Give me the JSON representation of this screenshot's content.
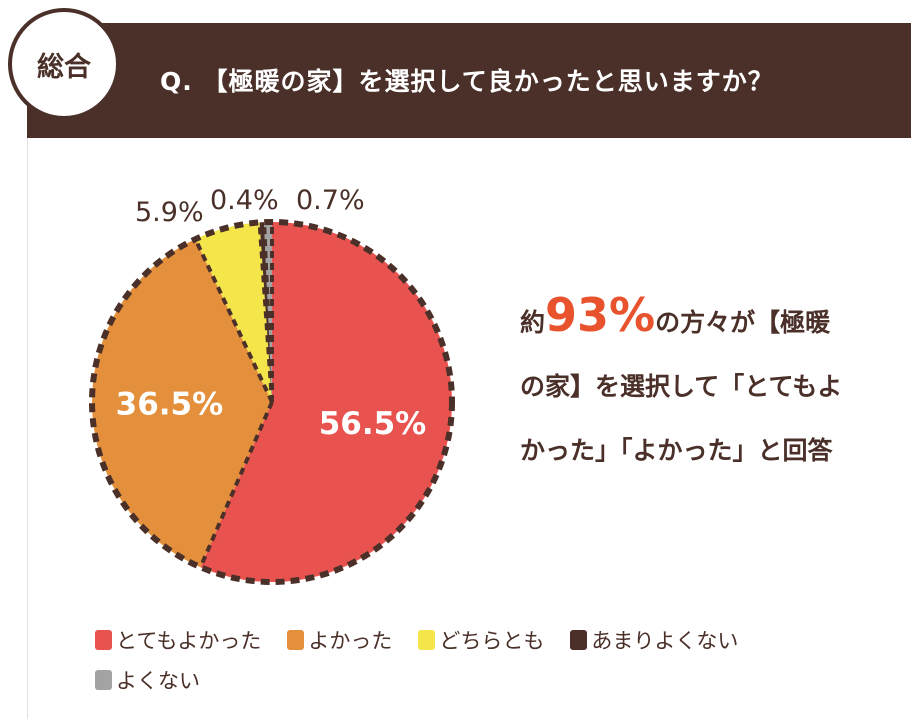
{
  "badge": "総合",
  "question": "Q. 【極暖の家】を選択して良かったと思いますか？",
  "summary": {
    "prefix": "約",
    "highlight": "93%",
    "rest": "の方々が【極暖の家】を選択して「とてもよかった」「よかった」と回答"
  },
  "chart_data": {
    "type": "pie",
    "title": "Q. 【極暖の家】を選択して良かったと思いますか？",
    "categories": [
      "とてもよかった",
      "よかった",
      "どちらとも",
      "あまりよくない",
      "よくない"
    ],
    "values": [
      56.5,
      36.5,
      5.9,
      0.4,
      0.7
    ],
    "labels": [
      "56.5%",
      "36.5%",
      "5.9%",
      "0.4%",
      "0.7%"
    ],
    "colors": [
      "#e8534f",
      "#e38f3b",
      "#f3e54a",
      "#4a3029",
      "#a3a3a3"
    ],
    "start": "top",
    "direction": "clockwise",
    "legend": "bottom"
  }
}
